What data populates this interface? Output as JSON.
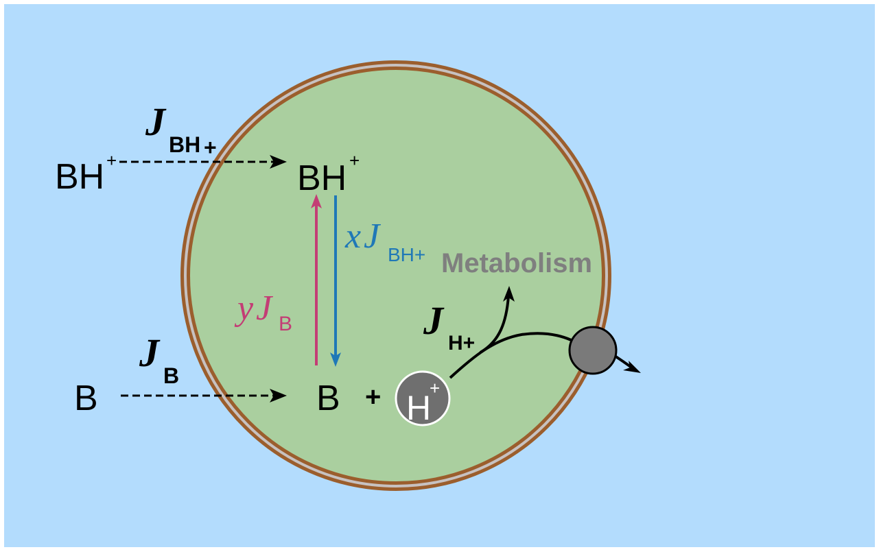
{
  "labels": {
    "outer_bh": {
      "main": "BH",
      "sup": "+"
    },
    "outer_b": "B",
    "inner_bh": {
      "main": "BH",
      "sup": "+"
    },
    "inner_b": "B",
    "plus": "+",
    "proton": {
      "main": "H",
      "sup": "+"
    },
    "flux_bh": {
      "main": "J",
      "sub": "BH",
      "sub2": "+"
    },
    "flux_b": {
      "main": "J",
      "sub": "B"
    },
    "flux_h": {
      "main": "J",
      "sub": "H+"
    },
    "x_flux": {
      "coef": "x",
      "main": "J",
      "sub": "BH+"
    },
    "y_flux": {
      "coef": "y",
      "main": "J",
      "sub": "B"
    },
    "metabolism": "Metabolism"
  },
  "colors": {
    "background": "#b3dcfd",
    "cell_fill": "#aacf9f",
    "membrane_outer": "#9b5e2d",
    "membrane_inner": "#c7c1c0",
    "magenta_arrow": "#c33d75",
    "blue_arrow": "#1f78b7",
    "metabolism_text": "#7f7f7f",
    "proton_fill": "#6f6f6f",
    "pump_fill": "#7a7a7a"
  }
}
